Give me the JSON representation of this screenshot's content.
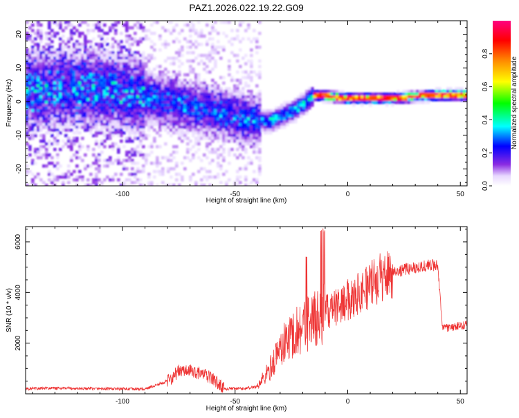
{
  "figure_title": "PAZ1.2026.022.19.22.G09",
  "chart_data": [
    {
      "type": "heatmap",
      "title": "PAZ1.2026.022.19.22.G09",
      "xlabel": "Height of straight line (km)",
      "ylabel": "Frequency (Hz)",
      "xlim": [
        -143,
        53
      ],
      "ylim": [
        -25,
        24
      ],
      "xticks": [
        -100,
        -50,
        0,
        50
      ],
      "yticks": [
        -20,
        -10,
        0,
        10,
        20
      ],
      "xtick_labels": [
        "-100",
        "-50",
        "0",
        "50"
      ],
      "ytick_labels": [
        "-20",
        "-10",
        "0",
        "10",
        "20"
      ],
      "colorbar": {
        "label": "Normalized spectral amplitude",
        "range": [
          0,
          1
        ],
        "ticks": [
          0.0,
          0.2,
          0.4,
          0.6,
          0.8
        ],
        "tick_labels": [
          "0.0",
          "0.2",
          "0.4",
          "0.6",
          "0.8"
        ],
        "colors": [
          "#ffffff",
          "#8a2be2",
          "#0000ff",
          "#00ffff",
          "#00ff00",
          "#ffff00",
          "#ff8800",
          "#ff0000",
          "#ff0080"
        ]
      },
      "frequency_track": {
        "x": [
          -143,
          -120,
          -100,
          -80,
          -60,
          -45,
          -35,
          -25,
          -20,
          -15,
          0,
          20,
          40,
          53
        ],
        "y": [
          3,
          4,
          3,
          0,
          -3,
          -5,
          -6,
          -3,
          -1,
          2,
          1,
          1,
          2,
          2
        ]
      }
    },
    {
      "type": "line",
      "xlabel": "Height of straight line (km)",
      "ylabel": "SNR (10 * v/v)",
      "xlim": [
        -143,
        53
      ],
      "ylim": [
        0,
        6600
      ],
      "xticks": [
        -100,
        -50,
        0,
        50
      ],
      "yticks": [
        2000,
        4000,
        6000
      ],
      "xtick_labels": [
        "-100",
        "-50",
        "0",
        "50"
      ],
      "ytick_labels": [
        "2000",
        "4000",
        "6000"
      ],
      "series": [
        {
          "name": "SNR",
          "color": "#ee3333",
          "x": [
            -143,
            -130,
            -110,
            -90,
            -80,
            -75,
            -70,
            -65,
            -60,
            -55,
            -50,
            -45,
            -40,
            -35,
            -30,
            -25,
            -20,
            -15,
            -10,
            -5,
            0,
            5,
            10,
            15,
            20,
            25,
            30,
            35,
            40,
            42,
            45,
            53
          ],
          "y": [
            200,
            220,
            200,
            190,
            500,
            900,
            900,
            800,
            600,
            200,
            200,
            210,
            300,
            900,
            1800,
            2300,
            2700,
            2900,
            3200,
            3400,
            3700,
            4000,
            4300,
            4600,
            4800,
            4900,
            5000,
            5050,
            5100,
            2600,
            2600,
            2750
          ]
        }
      ]
    }
  ]
}
